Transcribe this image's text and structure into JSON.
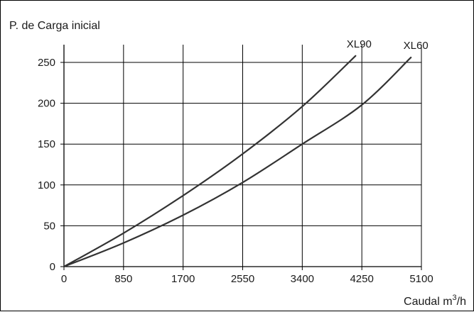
{
  "chart_data": {
    "type": "line",
    "title": "",
    "ylabel": "P. de Carga inicial",
    "xlabel": {
      "text": "Caudal m",
      "superscript": "3",
      "suffix": "/h"
    },
    "xlim": [
      0,
      5100
    ],
    "ylim": [
      0,
      250
    ],
    "x_ticks": [
      0,
      850,
      1700,
      2550,
      3400,
      4250,
      5100
    ],
    "y_ticks": [
      0,
      50,
      100,
      150,
      200,
      250
    ],
    "grid": true,
    "legend": "inline labels at line ends",
    "colors": {
      "lines": "#333333",
      "grid": "#000000",
      "text": "#1a1a1a"
    },
    "series": [
      {
        "name": "XL90",
        "x": [
          0,
          850,
          1700,
          2550,
          3400,
          4160
        ],
        "y": [
          0,
          41,
          87,
          138,
          196,
          258
        ]
      },
      {
        "name": "XL60",
        "x": [
          0,
          850,
          1700,
          2550,
          3400,
          4250,
          4950
        ],
        "y": [
          0,
          29,
          63,
          103,
          150,
          198,
          256
        ]
      }
    ]
  }
}
